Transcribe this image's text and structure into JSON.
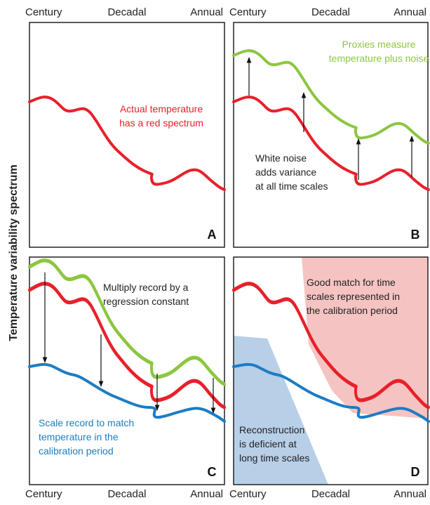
{
  "y_axis_label": "Temperature variability spectrum",
  "axis_labels": {
    "top_left": [
      "Century",
      "Decadal",
      "Annual"
    ],
    "top_right": [
      "Century",
      "Decadal",
      "Annual"
    ],
    "bottom_left": [
      "Century",
      "Decadal",
      "Annual"
    ],
    "bottom_right": [
      "Century",
      "Decadal",
      "Annual"
    ]
  },
  "panels": [
    {
      "label": "A",
      "notes": [
        [
          "Actual temperature",
          "has a red spectrum"
        ]
      ]
    },
    {
      "label": "B",
      "notes": [
        [
          "Proxies measure",
          "temperature plus noise"
        ],
        [
          "White noise",
          "adds variance",
          "at all time scales"
        ]
      ]
    },
    {
      "label": "C",
      "notes": [
        [
          "Multiply record by a",
          "regression constant"
        ],
        [
          "Scale record to match",
          "temperature in the",
          "calibration period"
        ]
      ]
    },
    {
      "label": "D",
      "notes": [
        [
          "Good match for time",
          "scales represented in",
          "the calibration period"
        ],
        [
          "Reconstruction",
          "is deficient at",
          "long time scales"
        ]
      ]
    }
  ]
}
